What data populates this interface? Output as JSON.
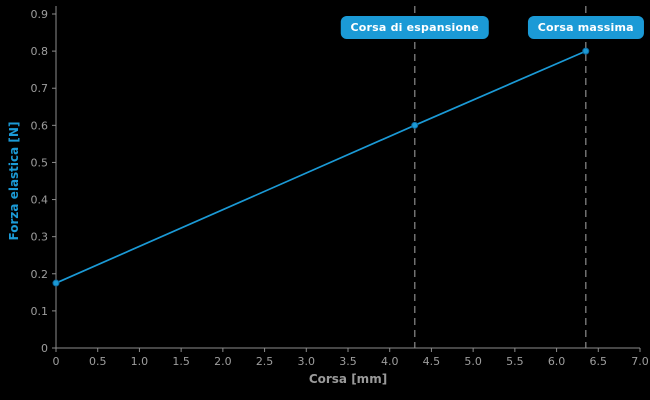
{
  "chart_data": {
    "type": "line",
    "title": "",
    "xlabel": "Corsa [mm]",
    "ylabel": "Forza elastica [N]",
    "xlim": [
      0,
      7.0
    ],
    "ylim": [
      0,
      0.9
    ],
    "grid": false,
    "legend": false,
    "x_ticks": [
      {
        "v": 0,
        "label": "0"
      },
      {
        "v": 0.5,
        "label": "0.5"
      },
      {
        "v": 1.0,
        "label": "1.0"
      },
      {
        "v": 1.5,
        "label": "1.5"
      },
      {
        "v": 2.0,
        "label": "2.0"
      },
      {
        "v": 2.5,
        "label": "2.5"
      },
      {
        "v": 3.0,
        "label": "3.0"
      },
      {
        "v": 3.5,
        "label": "3.5"
      },
      {
        "v": 4.0,
        "label": "4.0"
      },
      {
        "v": 4.5,
        "label": "4.5"
      },
      {
        "v": 5.0,
        "label": "5.0"
      },
      {
        "v": 5.5,
        "label": "5.5"
      },
      {
        "v": 6.0,
        "label": "6.0"
      },
      {
        "v": 6.5,
        "label": "6.5"
      },
      {
        "v": 7.0,
        "label": "7.0"
      }
    ],
    "y_ticks": [
      {
        "v": 0,
        "label": "0"
      },
      {
        "v": 0.1,
        "label": "0.1"
      },
      {
        "v": 0.2,
        "label": "0.2"
      },
      {
        "v": 0.3,
        "label": "0.3"
      },
      {
        "v": 0.4,
        "label": "0.4"
      },
      {
        "v": 0.5,
        "label": "0.5"
      },
      {
        "v": 0.6,
        "label": "0.6"
      },
      {
        "v": 0.7,
        "label": "0.7"
      },
      {
        "v": 0.8,
        "label": "0.8"
      },
      {
        "v": 0.9,
        "label": "0.9"
      }
    ],
    "series": [
      {
        "name": "Forza elastica",
        "color": "#1b9ad6",
        "x": [
          0,
          4.3,
          6.35
        ],
        "y": [
          0.175,
          0.6,
          0.8
        ]
      }
    ],
    "annotations": [
      {
        "label": "Corsa di espansione",
        "x": 4.3
      },
      {
        "label": "Corsa massima",
        "x": 6.35
      }
    ],
    "colors": {
      "background": "#000000",
      "axis": "#8c8c8c",
      "tick_text": "#9e9e9e",
      "dashed": "#707070",
      "accent": "#1b9ad6",
      "marker_stroke": "#0d6aa0",
      "badge_text": "#ffffff"
    }
  }
}
